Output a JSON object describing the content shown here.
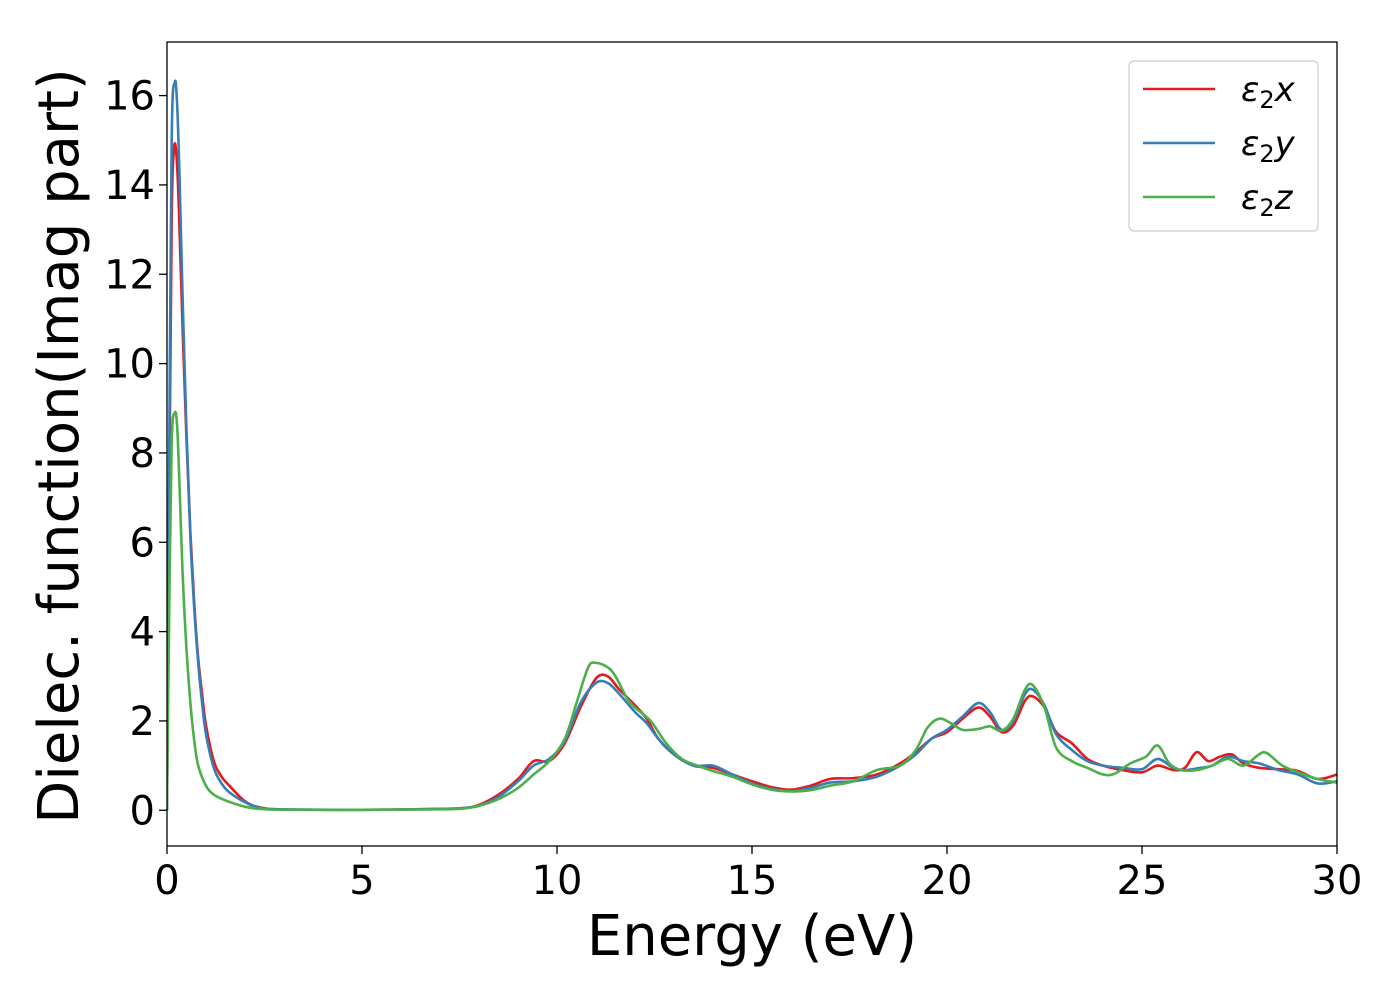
{
  "chart_data": {
    "type": "line",
    "title": "",
    "xlabel": "Energy (eV)",
    "ylabel": "Dielec. function(Imag part)",
    "xlim": [
      0,
      30
    ],
    "ylim": [
      -0.8,
      17.2
    ],
    "xticks": [
      0,
      5,
      10,
      15,
      20,
      25,
      30
    ],
    "yticks": [
      0,
      2,
      4,
      6,
      8,
      10,
      12,
      14,
      16
    ],
    "grid": false,
    "legend_placement": "top-right",
    "series": [
      {
        "name": "ε2x",
        "legend": {
          "symbol": "ε",
          "sub": "2",
          "suffix": "x"
        },
        "color": "#e41a1c",
        "points": [
          [
            0,
            0
          ],
          [
            0.05,
            6
          ],
          [
            0.12,
            13.2
          ],
          [
            0.18,
            14.8
          ],
          [
            0.24,
            14.7
          ],
          [
            0.3,
            13.6
          ],
          [
            0.4,
            10.8
          ],
          [
            0.5,
            8.3
          ],
          [
            0.6,
            6.2
          ],
          [
            0.7,
            4.6
          ],
          [
            0.8,
            3.4
          ],
          [
            0.9,
            2.6
          ],
          [
            1.0,
            1.9
          ],
          [
            1.2,
            1.1
          ],
          [
            1.4,
            0.75
          ],
          [
            1.6,
            0.55
          ],
          [
            2.0,
            0.2
          ],
          [
            2.4,
            0.06
          ],
          [
            3,
            0.02
          ],
          [
            5,
            0.01
          ],
          [
            7,
            0.03
          ],
          [
            7.6,
            0.05
          ],
          [
            8.0,
            0.12
          ],
          [
            8.5,
            0.35
          ],
          [
            9.0,
            0.7
          ],
          [
            9.4,
            1.1
          ],
          [
            9.8,
            1.1
          ],
          [
            10.2,
            1.5
          ],
          [
            10.6,
            2.3
          ],
          [
            11.0,
            2.95
          ],
          [
            11.3,
            3.0
          ],
          [
            11.6,
            2.7
          ],
          [
            12.0,
            2.35
          ],
          [
            12.3,
            2.05
          ],
          [
            12.6,
            1.6
          ],
          [
            13.0,
            1.25
          ],
          [
            13.5,
            1.0
          ],
          [
            14.0,
            0.95
          ],
          [
            14.5,
            0.8
          ],
          [
            15.0,
            0.65
          ],
          [
            15.5,
            0.52
          ],
          [
            16.0,
            0.46
          ],
          [
            16.5,
            0.55
          ],
          [
            17.0,
            0.7
          ],
          [
            17.6,
            0.72
          ],
          [
            18.2,
            0.8
          ],
          [
            18.8,
            1.05
          ],
          [
            19.2,
            1.3
          ],
          [
            19.6,
            1.6
          ],
          [
            20.0,
            1.75
          ],
          [
            20.4,
            2.05
          ],
          [
            20.8,
            2.3
          ],
          [
            21.1,
            2.1
          ],
          [
            21.4,
            1.75
          ],
          [
            21.7,
            1.9
          ],
          [
            22.0,
            2.45
          ],
          [
            22.2,
            2.55
          ],
          [
            22.5,
            2.3
          ],
          [
            22.8,
            1.75
          ],
          [
            23.2,
            1.5
          ],
          [
            23.6,
            1.15
          ],
          [
            24.0,
            1.0
          ],
          [
            24.5,
            0.9
          ],
          [
            25.0,
            0.85
          ],
          [
            25.4,
            1.0
          ],
          [
            25.8,
            0.9
          ],
          [
            26.1,
            0.95
          ],
          [
            26.4,
            1.3
          ],
          [
            26.7,
            1.1
          ],
          [
            27.0,
            1.2
          ],
          [
            27.3,
            1.25
          ],
          [
            27.6,
            1.05
          ],
          [
            28.0,
            0.95
          ],
          [
            28.5,
            0.92
          ],
          [
            29.0,
            0.88
          ],
          [
            29.5,
            0.7
          ],
          [
            30,
            0.8
          ]
        ]
      },
      {
        "name": "ε2y",
        "legend": {
          "symbol": "ε",
          "sub": "2",
          "suffix": "y"
        },
        "color": "#377eb8",
        "points": [
          [
            0,
            0
          ],
          [
            0.05,
            7
          ],
          [
            0.12,
            15.0
          ],
          [
            0.2,
            16.3
          ],
          [
            0.26,
            15.8
          ],
          [
            0.32,
            14.2
          ],
          [
            0.4,
            11.5
          ],
          [
            0.5,
            8.5
          ],
          [
            0.6,
            6.1
          ],
          [
            0.7,
            4.5
          ],
          [
            0.8,
            3.3
          ],
          [
            0.9,
            2.4
          ],
          [
            1.0,
            1.7
          ],
          [
            1.2,
            0.95
          ],
          [
            1.4,
            0.6
          ],
          [
            1.6,
            0.4
          ],
          [
            2.0,
            0.18
          ],
          [
            2.4,
            0.05
          ],
          [
            3,
            0.02
          ],
          [
            5,
            0.01
          ],
          [
            7,
            0.03
          ],
          [
            7.6,
            0.05
          ],
          [
            8.0,
            0.1
          ],
          [
            8.5,
            0.3
          ],
          [
            9.0,
            0.65
          ],
          [
            9.4,
            1.0
          ],
          [
            9.8,
            1.15
          ],
          [
            10.2,
            1.55
          ],
          [
            10.6,
            2.4
          ],
          [
            11.0,
            2.85
          ],
          [
            11.3,
            2.85
          ],
          [
            11.6,
            2.6
          ],
          [
            12.0,
            2.2
          ],
          [
            12.3,
            1.95
          ],
          [
            12.6,
            1.6
          ],
          [
            13.0,
            1.25
          ],
          [
            13.5,
            1.0
          ],
          [
            14.0,
            1.0
          ],
          [
            14.5,
            0.8
          ],
          [
            15.0,
            0.6
          ],
          [
            15.5,
            0.48
          ],
          [
            16.0,
            0.43
          ],
          [
            16.5,
            0.5
          ],
          [
            17.0,
            0.62
          ],
          [
            17.6,
            0.65
          ],
          [
            18.2,
            0.75
          ],
          [
            18.8,
            1.0
          ],
          [
            19.2,
            1.25
          ],
          [
            19.6,
            1.6
          ],
          [
            20.0,
            1.8
          ],
          [
            20.4,
            2.1
          ],
          [
            20.8,
            2.4
          ],
          [
            21.1,
            2.2
          ],
          [
            21.4,
            1.8
          ],
          [
            21.7,
            2.0
          ],
          [
            22.0,
            2.6
          ],
          [
            22.2,
            2.7
          ],
          [
            22.5,
            2.35
          ],
          [
            22.8,
            1.7
          ],
          [
            23.2,
            1.35
          ],
          [
            23.6,
            1.1
          ],
          [
            24.0,
            1.0
          ],
          [
            24.5,
            0.95
          ],
          [
            25.0,
            0.92
          ],
          [
            25.4,
            1.15
          ],
          [
            25.8,
            0.95
          ],
          [
            26.1,
            0.9
          ],
          [
            26.5,
            0.95
          ],
          [
            26.8,
            1.0
          ],
          [
            27.2,
            1.2
          ],
          [
            27.6,
            1.1
          ],
          [
            28.0,
            1.05
          ],
          [
            28.5,
            0.9
          ],
          [
            29.0,
            0.8
          ],
          [
            29.5,
            0.6
          ],
          [
            30,
            0.65
          ]
        ]
      },
      {
        "name": "ε2z",
        "legend": {
          "symbol": "ε",
          "sub": "2",
          "suffix": "z"
        },
        "color": "#4daf4a",
        "points": [
          [
            0,
            0
          ],
          [
            0.05,
            4
          ],
          [
            0.12,
            8.2
          ],
          [
            0.2,
            8.9
          ],
          [
            0.26,
            8.6
          ],
          [
            0.32,
            7.3
          ],
          [
            0.4,
            5.3
          ],
          [
            0.5,
            3.6
          ],
          [
            0.6,
            2.4
          ],
          [
            0.7,
            1.55
          ],
          [
            0.8,
            1.0
          ],
          [
            1.0,
            0.55
          ],
          [
            1.2,
            0.35
          ],
          [
            1.5,
            0.22
          ],
          [
            2.0,
            0.08
          ],
          [
            2.4,
            0.03
          ],
          [
            3,
            0.01
          ],
          [
            5,
            0.01
          ],
          [
            7,
            0.02
          ],
          [
            7.6,
            0.04
          ],
          [
            8.0,
            0.1
          ],
          [
            8.5,
            0.25
          ],
          [
            9.0,
            0.5
          ],
          [
            9.4,
            0.8
          ],
          [
            9.8,
            1.1
          ],
          [
            10.2,
            1.6
          ],
          [
            10.5,
            2.4
          ],
          [
            10.8,
            3.2
          ],
          [
            11.0,
            3.3
          ],
          [
            11.3,
            3.2
          ],
          [
            11.5,
            3.0
          ],
          [
            11.8,
            2.5
          ],
          [
            12.0,
            2.3
          ],
          [
            12.4,
            2.0
          ],
          [
            12.8,
            1.5
          ],
          [
            13.2,
            1.15
          ],
          [
            13.6,
            1.0
          ],
          [
            14.0,
            0.88
          ],
          [
            14.5,
            0.75
          ],
          [
            15.0,
            0.58
          ],
          [
            15.5,
            0.46
          ],
          [
            16.0,
            0.42
          ],
          [
            16.5,
            0.45
          ],
          [
            17.0,
            0.55
          ],
          [
            17.6,
            0.65
          ],
          [
            18.2,
            0.9
          ],
          [
            18.8,
            1.0
          ],
          [
            19.2,
            1.35
          ],
          [
            19.5,
            1.85
          ],
          [
            19.8,
            2.05
          ],
          [
            20.1,
            1.95
          ],
          [
            20.4,
            1.8
          ],
          [
            20.8,
            1.82
          ],
          [
            21.1,
            1.88
          ],
          [
            21.4,
            1.78
          ],
          [
            21.7,
            2.05
          ],
          [
            22.0,
            2.7
          ],
          [
            22.2,
            2.8
          ],
          [
            22.5,
            2.3
          ],
          [
            22.8,
            1.4
          ],
          [
            23.2,
            1.1
          ],
          [
            23.6,
            0.95
          ],
          [
            24.0,
            0.8
          ],
          [
            24.3,
            0.82
          ],
          [
            24.7,
            1.05
          ],
          [
            25.1,
            1.2
          ],
          [
            25.4,
            1.45
          ],
          [
            25.7,
            1.05
          ],
          [
            26.0,
            0.9
          ],
          [
            26.4,
            0.9
          ],
          [
            26.8,
            1.0
          ],
          [
            27.2,
            1.15
          ],
          [
            27.6,
            1.0
          ],
          [
            28.0,
            1.25
          ],
          [
            28.2,
            1.28
          ],
          [
            28.6,
            1.0
          ],
          [
            29.0,
            0.85
          ],
          [
            29.5,
            0.7
          ],
          [
            30,
            0.62
          ]
        ]
      }
    ]
  }
}
